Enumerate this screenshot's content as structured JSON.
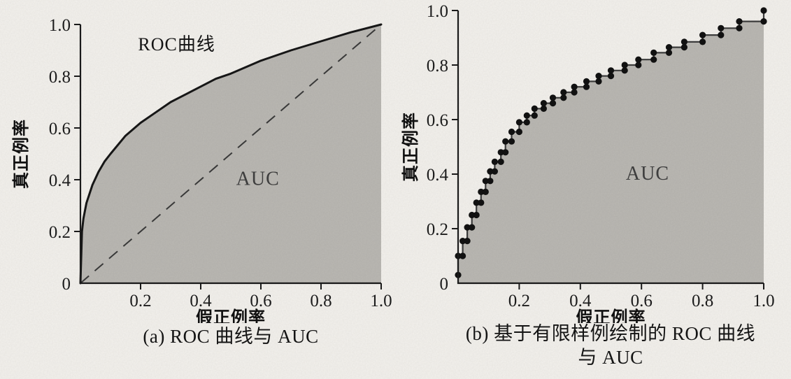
{
  "figure": {
    "captions": {
      "a": "(a) ROC 曲线与 AUC",
      "b_line1": "(b) 基于有限样例绘制的 ROC 曲线",
      "b_line2": "与 AUC"
    },
    "colors": {
      "background": "#f3f1ed",
      "axis": "#1a1a1a",
      "curve": "#161616",
      "step_line": "#3d3d3d",
      "marker": "#111111",
      "area_fill": "#bab8b3",
      "diagonal": "#3a3a3a",
      "tick_text": "#1c1c1c"
    }
  },
  "chart_data": [
    {
      "id": "a",
      "type": "area",
      "title": "(a) ROC 曲线与 AUC",
      "xlabel": "假正例率",
      "ylabel": "真正例率",
      "xlim": [
        0,
        1
      ],
      "ylim": [
        0,
        1
      ],
      "xticks": [
        0.2,
        0.4,
        0.6,
        0.8,
        1.0
      ],
      "xtick_labels": [
        "0.2",
        "0.4",
        "0.6",
        "0.8",
        "1.0"
      ],
      "yticks": [
        0.2,
        0.4,
        0.6,
        0.8,
        1.0
      ],
      "ytick_labels": [
        "0.2",
        "0.4",
        "0.6",
        "0.8",
        "1.0"
      ],
      "origin_label": "0",
      "grid": false,
      "legend": false,
      "diagonal": true,
      "markers": false,
      "fill": true,
      "annotations": [
        {
          "text": "ROC曲线",
          "x": 0.32,
          "y": 0.9,
          "size": 26,
          "color": "#141414"
        },
        {
          "text": "AUC",
          "x": 0.59,
          "y": 0.38,
          "size": 28,
          "color": "#3f3f3f"
        }
      ],
      "series": [
        {
          "name": "ROC曲线",
          "points": [
            [
              0,
              0
            ],
            [
              0.005,
              0.2
            ],
            [
              0.01,
              0.25
            ],
            [
              0.02,
              0.31
            ],
            [
              0.04,
              0.38
            ],
            [
              0.06,
              0.43
            ],
            [
              0.08,
              0.47
            ],
            [
              0.1,
              0.5
            ],
            [
              0.15,
              0.57
            ],
            [
              0.2,
              0.62
            ],
            [
              0.25,
              0.66
            ],
            [
              0.3,
              0.7
            ],
            [
              0.35,
              0.73
            ],
            [
              0.4,
              0.76
            ],
            [
              0.45,
              0.79
            ],
            [
              0.5,
              0.81
            ],
            [
              0.6,
              0.86
            ],
            [
              0.7,
              0.9
            ],
            [
              0.8,
              0.935
            ],
            [
              0.9,
              0.97
            ],
            [
              1.0,
              1.0
            ]
          ]
        }
      ]
    },
    {
      "id": "b",
      "type": "area",
      "title": "(b) 基于有限样例绘制的 ROC 曲线与 AUC",
      "xlabel": "假正例率",
      "ylabel": "真正例率",
      "xlim": [
        0,
        1
      ],
      "ylim": [
        0,
        1
      ],
      "xticks": [
        0.2,
        0.4,
        0.6,
        0.8,
        1.0
      ],
      "xtick_labels": [
        "0.2",
        "0.4",
        "0.6",
        "0.8",
        "1.0"
      ],
      "yticks": [
        0.2,
        0.4,
        0.6,
        0.8,
        1.0
      ],
      "ytick_labels": [
        "0.2",
        "0.4",
        "0.6",
        "0.8",
        "1.0"
      ],
      "origin_label": "0",
      "grid": false,
      "legend": false,
      "diagonal": false,
      "markers": true,
      "fill": true,
      "annotations": [
        {
          "text": "AUC",
          "x": 0.62,
          "y": 0.38,
          "size": 28,
          "color": "#3f3f3f"
        }
      ],
      "series": [
        {
          "name": "ROC曲线",
          "points": [
            [
              0.0,
              0.03
            ],
            [
              0.0,
              0.1
            ],
            [
              0.015,
              0.1
            ],
            [
              0.015,
              0.155
            ],
            [
              0.03,
              0.155
            ],
            [
              0.03,
              0.205
            ],
            [
              0.045,
              0.205
            ],
            [
              0.045,
              0.25
            ],
            [
              0.06,
              0.25
            ],
            [
              0.06,
              0.295
            ],
            [
              0.075,
              0.295
            ],
            [
              0.075,
              0.335
            ],
            [
              0.09,
              0.335
            ],
            [
              0.09,
              0.375
            ],
            [
              0.105,
              0.375
            ],
            [
              0.105,
              0.41
            ],
            [
              0.12,
              0.41
            ],
            [
              0.12,
              0.445
            ],
            [
              0.14,
              0.445
            ],
            [
              0.14,
              0.48
            ],
            [
              0.155,
              0.48
            ],
            [
              0.155,
              0.52
            ],
            [
              0.175,
              0.52
            ],
            [
              0.175,
              0.555
            ],
            [
              0.2,
              0.555
            ],
            [
              0.2,
              0.59
            ],
            [
              0.225,
              0.59
            ],
            [
              0.225,
              0.615
            ],
            [
              0.25,
              0.615
            ],
            [
              0.25,
              0.64
            ],
            [
              0.28,
              0.64
            ],
            [
              0.28,
              0.66
            ],
            [
              0.31,
              0.66
            ],
            [
              0.31,
              0.68
            ],
            [
              0.345,
              0.68
            ],
            [
              0.345,
              0.7
            ],
            [
              0.38,
              0.7
            ],
            [
              0.38,
              0.72
            ],
            [
              0.42,
              0.72
            ],
            [
              0.42,
              0.74
            ],
            [
              0.46,
              0.74
            ],
            [
              0.46,
              0.76
            ],
            [
              0.5,
              0.76
            ],
            [
              0.5,
              0.78
            ],
            [
              0.545,
              0.78
            ],
            [
              0.545,
              0.8
            ],
            [
              0.59,
              0.8
            ],
            [
              0.59,
              0.82
            ],
            [
              0.64,
              0.82
            ],
            [
              0.64,
              0.845
            ],
            [
              0.69,
              0.845
            ],
            [
              0.69,
              0.865
            ],
            [
              0.74,
              0.865
            ],
            [
              0.74,
              0.885
            ],
            [
              0.8,
              0.885
            ],
            [
              0.8,
              0.91
            ],
            [
              0.86,
              0.91
            ],
            [
              0.86,
              0.935
            ],
            [
              0.92,
              0.935
            ],
            [
              0.92,
              0.96
            ],
            [
              1.0,
              0.96
            ],
            [
              1.0,
              1.0
            ]
          ]
        }
      ]
    }
  ]
}
